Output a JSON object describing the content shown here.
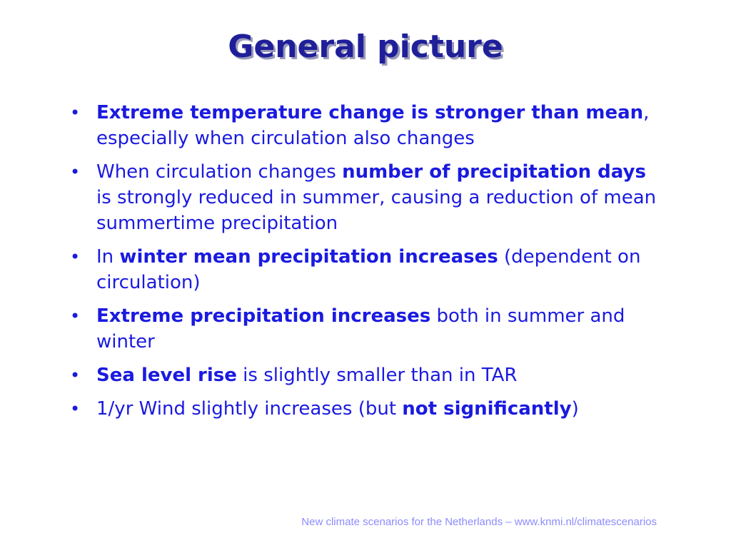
{
  "slide": {
    "title": "General picture",
    "bullet_glyph": "•",
    "bullets": [
      {
        "segments": [
          {
            "text": "Extreme temperature change is stronger than mean",
            "bold": true
          },
          {
            "text": ", especially when circulation also changes",
            "bold": false
          }
        ]
      },
      {
        "segments": [
          {
            "text": "When circulation changes ",
            "bold": false
          },
          {
            "text": "number of precipitation days",
            "bold": true
          },
          {
            "text": " is strongly reduced in summer, causing a reduction of mean summertime precipitation",
            "bold": false
          }
        ]
      },
      {
        "segments": [
          {
            "text": "In ",
            "bold": false
          },
          {
            "text": "winter mean precipitation increases",
            "bold": true
          },
          {
            "text": " (dependent on circulation)",
            "bold": false
          }
        ]
      },
      {
        "segments": [
          {
            "text": "Extreme precipitation increases",
            "bold": true
          },
          {
            "text": " both in summer and winter",
            "bold": false
          }
        ]
      },
      {
        "segments": [
          {
            "text": "Sea level rise",
            "bold": true
          },
          {
            "text": " is slightly smaller than in TAR",
            "bold": false
          }
        ]
      },
      {
        "segments": [
          {
            "text": "1/yr Wind slightly increases (but ",
            "bold": false
          },
          {
            "text": "not significantly",
            "bold": true
          },
          {
            "text": ")",
            "bold": false
          }
        ]
      }
    ],
    "footer": "New climate scenarios for the Netherlands – www.knmi.nl/climatescenarios"
  },
  "colors": {
    "title": "#1f1f9a",
    "title_shadow": "#9a9ab8",
    "body_text": "#1a1ae0",
    "footer": "#8c8cff",
    "background": "#ffffff"
  }
}
